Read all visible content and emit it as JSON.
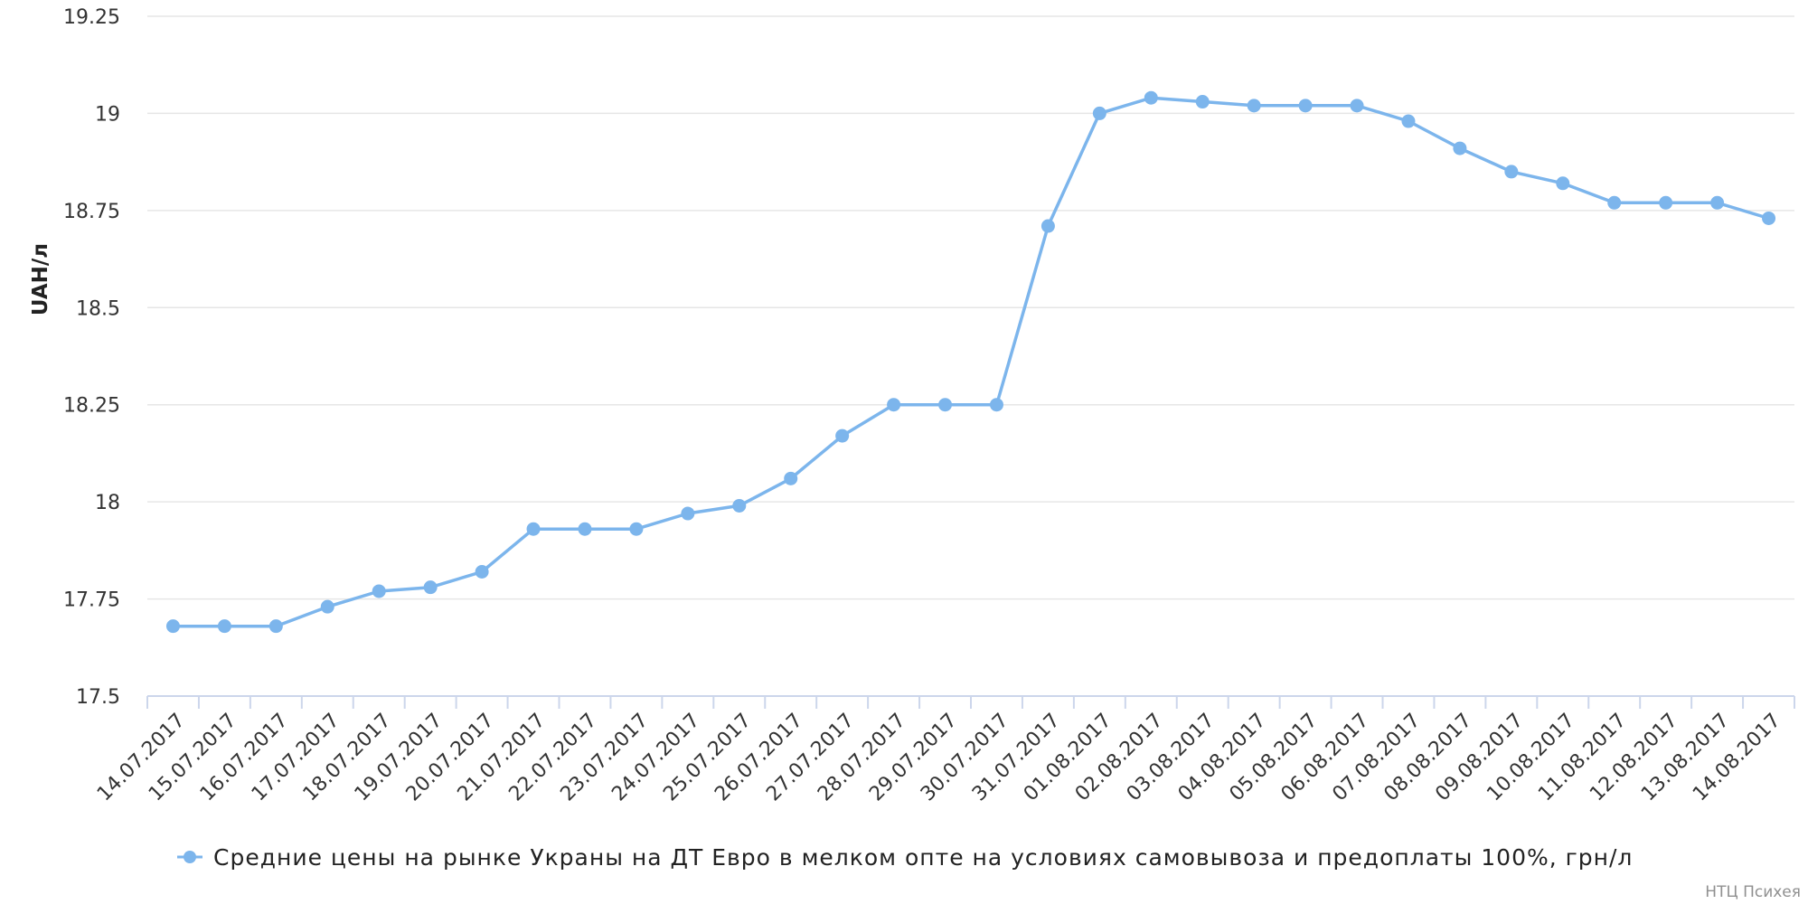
{
  "chart_data": {
    "type": "line",
    "ylabel": "UAH/л",
    "ylim": [
      17.5,
      19.25
    ],
    "yticks": [
      "17.5",
      "17.75",
      "18",
      "18.25",
      "18.5",
      "18.75",
      "19",
      "19.25"
    ],
    "grid": true,
    "legend_position": "bottom",
    "categories": [
      "14.07.2017",
      "15.07.2017",
      "16.07.2017",
      "17.07.2017",
      "18.07.2017",
      "19.07.2017",
      "20.07.2017",
      "21.07.2017",
      "22.07.2017",
      "23.07.2017",
      "24.07.2017",
      "25.07.2017",
      "26.07.2017",
      "27.07.2017",
      "28.07.2017",
      "29.07.2017",
      "30.07.2017",
      "31.07.2017",
      "01.08.2017",
      "02.08.2017",
      "03.08.2017",
      "04.08.2017",
      "05.08.2017",
      "06.08.2017",
      "07.08.2017",
      "08.08.2017",
      "09.08.2017",
      "10.08.2017",
      "11.08.2017",
      "12.08.2017",
      "13.08.2017",
      "14.08.2017"
    ],
    "series": [
      {
        "name": "Средние цены на рынке Украны на ДТ Евро в мелком опте на условиях самовывоза и предоплаты 100%, грн/л",
        "color": "#7cb5ec",
        "values": [
          17.68,
          17.68,
          17.68,
          17.73,
          17.77,
          17.78,
          17.82,
          17.93,
          17.93,
          17.93,
          17.97,
          17.99,
          18.06,
          18.17,
          18.25,
          18.25,
          18.25,
          18.71,
          19.0,
          19.04,
          19.03,
          19.02,
          19.02,
          19.02,
          18.98,
          18.91,
          18.85,
          18.82,
          18.77,
          18.77,
          18.77,
          18.73
        ]
      }
    ]
  },
  "credit": "НТЦ Психея"
}
